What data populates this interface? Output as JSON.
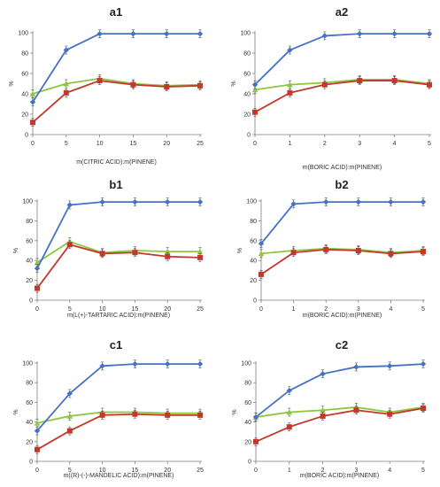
{
  "chart_data": [
    {
      "id": "a1",
      "type": "line",
      "title": "a1",
      "xlabel": "m(CITRIC ACID):m(PINENE)",
      "ylabel": "%",
      "x": [
        0,
        5,
        10,
        15,
        20,
        25
      ],
      "xlim": [
        0,
        25
      ],
      "xticks": [
        "0",
        "5",
        "10",
        "15",
        "20",
        "25"
      ],
      "ylim": [
        0,
        100
      ],
      "yticks": [
        "0",
        "20",
        "40",
        "60",
        "80",
        "100"
      ],
      "grid": false,
      "series": [
        {
          "color": "#4472c4",
          "marker": "diamond",
          "values": [
            32,
            83,
            99,
            99,
            99,
            99
          ]
        },
        {
          "color": "#c0392b",
          "marker": "square",
          "values": [
            12,
            41,
            53,
            49,
            47,
            48
          ]
        },
        {
          "color": "#8dc63f",
          "marker": "triangle",
          "values": [
            40,
            50,
            55,
            50,
            48,
            49
          ]
        }
      ]
    },
    {
      "id": "a2",
      "type": "line",
      "title": "a2",
      "xlabel": "m(BORIC ACID):m(PINENE)",
      "ylabel": "%",
      "x": [
        0,
        1,
        2,
        3,
        4,
        5
      ],
      "xlim": [
        0,
        5
      ],
      "xticks": [
        "0",
        "1",
        "2",
        "3",
        "4",
        "5"
      ],
      "ylim": [
        0,
        100
      ],
      "yticks": [
        "0",
        "20",
        "40",
        "60",
        "80",
        "100"
      ],
      "grid": false,
      "series": [
        {
          "color": "#4472c4",
          "marker": "diamond",
          "values": [
            49,
            83,
            97,
            99,
            99,
            99
          ]
        },
        {
          "color": "#c0392b",
          "marker": "square",
          "values": [
            22,
            41,
            49,
            53,
            53,
            49
          ]
        },
        {
          "color": "#8dc63f",
          "marker": "triangle",
          "values": [
            44,
            49,
            51,
            54,
            54,
            50
          ]
        }
      ]
    },
    {
      "id": "b1",
      "type": "line",
      "title": "b1",
      "xlabel": "m(L(+)-TARTARIC ACID):m(PINENE)",
      "ylabel": "%",
      "x": [
        0,
        5,
        10,
        15,
        20,
        25
      ],
      "xlim": [
        0,
        25
      ],
      "xticks": [
        "0",
        "5",
        "10",
        "15",
        "20",
        "25"
      ],
      "ylim": [
        0,
        100
      ],
      "yticks": [
        "0",
        "20",
        "40",
        "60",
        "80",
        "100"
      ],
      "grid": false,
      "series": [
        {
          "color": "#4472c4",
          "marker": "diamond",
          "values": [
            32,
            96,
            99,
            99,
            99,
            99
          ]
        },
        {
          "color": "#c0392b",
          "marker": "square",
          "values": [
            12,
            56,
            47,
            48,
            44,
            43
          ]
        },
        {
          "color": "#8dc63f",
          "marker": "triangle",
          "values": [
            38,
            59,
            48,
            50,
            49,
            49
          ]
        }
      ]
    },
    {
      "id": "b2",
      "type": "line",
      "title": "b2",
      "xlabel": "m(BORIC ACID):m(PINENE)",
      "ylabel": "%",
      "x": [
        0,
        1,
        2,
        3,
        4,
        5
      ],
      "xlim": [
        0,
        5
      ],
      "xticks": [
        "0",
        "1",
        "2",
        "3",
        "4",
        "5"
      ],
      "ylim": [
        0,
        100
      ],
      "yticks": [
        "0",
        "20",
        "40",
        "60",
        "80",
        "100"
      ],
      "grid": false,
      "series": [
        {
          "color": "#4472c4",
          "marker": "diamond",
          "values": [
            57,
            97,
            99,
            99,
            99,
            99
          ]
        },
        {
          "color": "#c0392b",
          "marker": "square",
          "values": [
            26,
            48,
            51,
            50,
            47,
            49
          ]
        },
        {
          "color": "#8dc63f",
          "marker": "triangle",
          "values": [
            47,
            50,
            52,
            51,
            48,
            50
          ]
        }
      ]
    },
    {
      "id": "c1",
      "type": "line",
      "title": "c1",
      "xlabel": "m((R)-(-)-MANDELIC ACID):m(PINENE)",
      "ylabel": "%",
      "x": [
        0,
        5,
        10,
        15,
        20,
        25
      ],
      "xlim": [
        0,
        25
      ],
      "xticks": [
        "0",
        "5",
        "10",
        "15",
        "20",
        "25"
      ],
      "ylim": [
        0,
        100
      ],
      "yticks": [
        "0",
        "20",
        "40",
        "60",
        "80",
        "100"
      ],
      "grid": false,
      "series": [
        {
          "color": "#4472c4",
          "marker": "diamond",
          "values": [
            31,
            69,
            97,
            99,
            99,
            99
          ]
        },
        {
          "color": "#c0392b",
          "marker": "square",
          "values": [
            12,
            31,
            47,
            48,
            47,
            47
          ]
        },
        {
          "color": "#8dc63f",
          "marker": "triangle",
          "values": [
            39,
            46,
            50,
            50,
            49,
            49
          ]
        }
      ]
    },
    {
      "id": "c2",
      "type": "line",
      "title": "c2",
      "xlabel": "m(BORIC ACID):m(PINENE)",
      "ylabel": "%",
      "x": [
        0,
        1,
        2,
        3,
        4,
        5
      ],
      "xlim": [
        0,
        5
      ],
      "xticks": [
        "0",
        "1",
        "2",
        "3",
        "4",
        "5"
      ],
      "ylim": [
        0,
        100
      ],
      "yticks": [
        "0",
        "20",
        "40",
        "60",
        "80",
        "100"
      ],
      "grid": false,
      "series": [
        {
          "color": "#4472c4",
          "marker": "diamond",
          "values": [
            45,
            72,
            89,
            96,
            97,
            99
          ]
        },
        {
          "color": "#c0392b",
          "marker": "square",
          "values": [
            20,
            35,
            46,
            52,
            48,
            54
          ]
        },
        {
          "color": "#8dc63f",
          "marker": "triangle",
          "values": [
            45,
            50,
            52,
            55,
            50,
            55
          ]
        }
      ]
    }
  ]
}
